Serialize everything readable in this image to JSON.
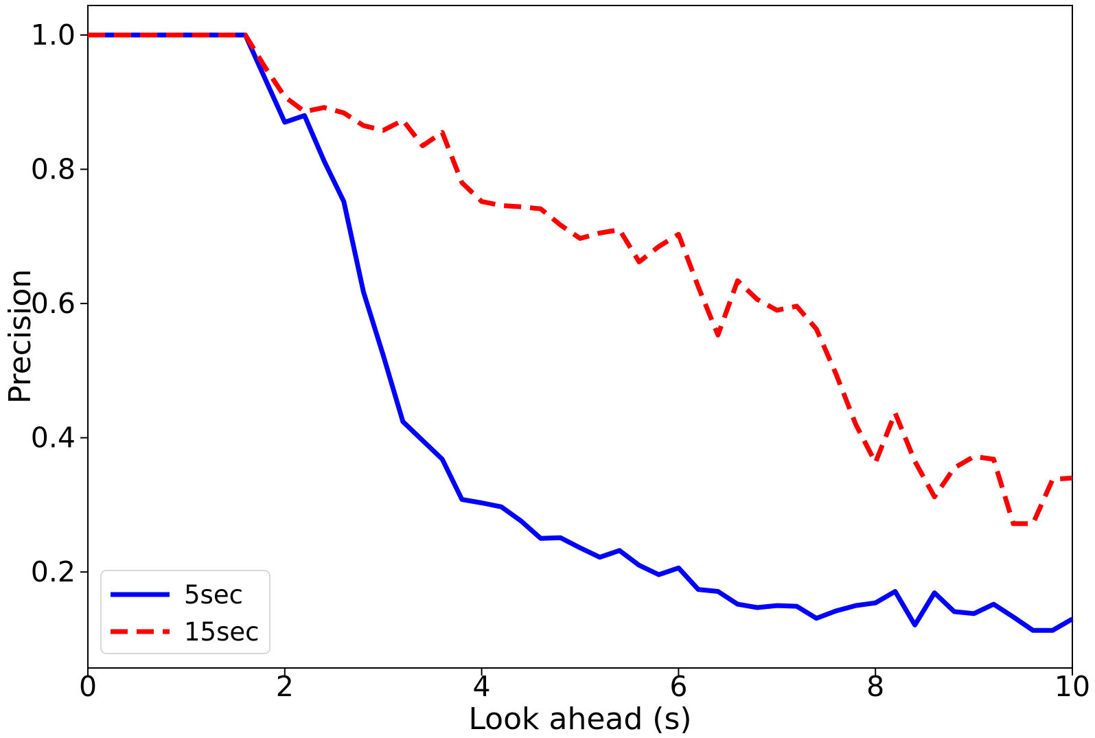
{
  "figure": {
    "background": "#ffffff",
    "frame_color": "#000000"
  },
  "chart_data": {
    "type": "line",
    "title": "",
    "xlabel": "Look ahead (s)",
    "ylabel": "Precision",
    "xlim": [
      0,
      10
    ],
    "ylim": [
      0.057,
      1.044
    ],
    "xticks": [
      0,
      2,
      4,
      6,
      8,
      10
    ],
    "yticks": [
      0.2,
      0.4,
      0.6,
      0.8,
      1.0
    ],
    "grid": false,
    "legend": {
      "position": "lower-left",
      "entries": [
        "5sec",
        "15sec"
      ]
    },
    "x": [
      0,
      0.2,
      0.4,
      0.6,
      0.8,
      1,
      1.2,
      1.4,
      1.6,
      1.8,
      2,
      2.2,
      2.4,
      2.6,
      2.8,
      3,
      3.2,
      3.4,
      3.6,
      3.8,
      4,
      4.2,
      4.4,
      4.6,
      4.8,
      5,
      5.2,
      5.4,
      5.6,
      5.8,
      6,
      6.2,
      6.4,
      6.6,
      6.8,
      7,
      7.2,
      7.4,
      7.6,
      7.8,
      8,
      8.2,
      8.4,
      8.6,
      8.8,
      9,
      9.2,
      9.4,
      9.6,
      9.8,
      10
    ],
    "series": [
      {
        "name": "5sec",
        "color": "#0000ff",
        "style": "solid",
        "linewidth": 7,
        "values": [
          1,
          1,
          1,
          1,
          1,
          1,
          1,
          1,
          1,
          0.935,
          0.87,
          0.88,
          0.812,
          0.752,
          0.617,
          0.523,
          0.424,
          0.396,
          0.368,
          0.308,
          0.303,
          0.297,
          0.276,
          0.25,
          0.251,
          0.236,
          0.222,
          0.232,
          0.21,
          0.196,
          0.206,
          0.174,
          0.171,
          0.152,
          0.147,
          0.15,
          0.149,
          0.131,
          0.142,
          0.15,
          0.154,
          0.171,
          0.121,
          0.169,
          0.141,
          0.138,
          0.152,
          0.133,
          0.113,
          0.113,
          0.13
        ]
      },
      {
        "name": "15sec",
        "color": "#ff0000",
        "style": "dashed",
        "linewidth": 7,
        "values": [
          1,
          1,
          1,
          1,
          1,
          1,
          1,
          1,
          1,
          0.952,
          0.908,
          0.886,
          0.892,
          0.884,
          0.865,
          0.858,
          0.873,
          0.835,
          0.855,
          0.78,
          0.752,
          0.746,
          0.744,
          0.741,
          0.717,
          0.697,
          0.705,
          0.71,
          0.662,
          0.685,
          0.703,
          0.625,
          0.553,
          0.634,
          0.606,
          0.59,
          0.596,
          0.562,
          0.495,
          0.42,
          0.363,
          0.437,
          0.365,
          0.312,
          0.355,
          0.372,
          0.368,
          0.272,
          0.272,
          0.338,
          0.34
        ]
      }
    ]
  }
}
